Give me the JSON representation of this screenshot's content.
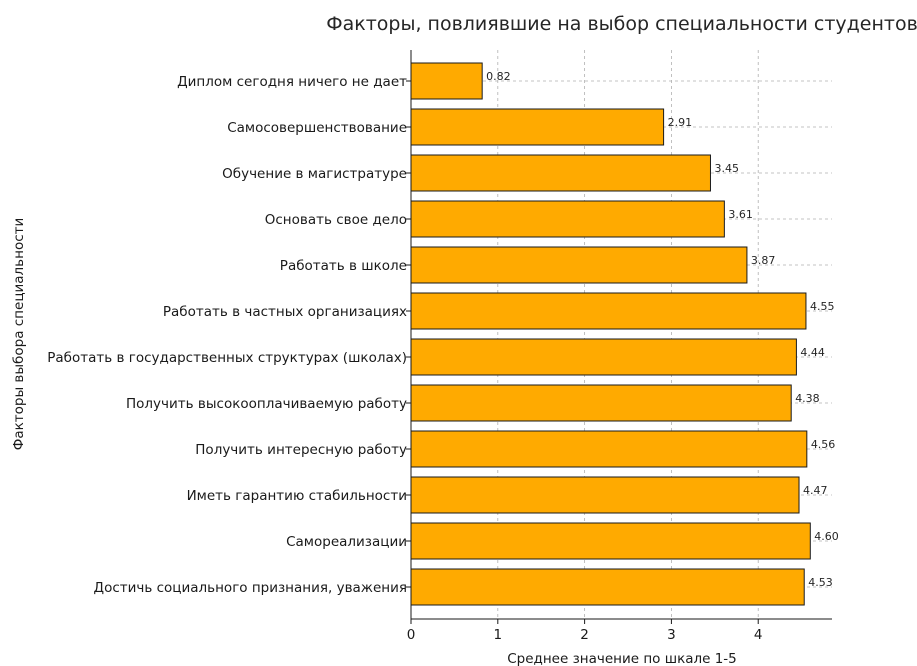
{
  "chart_data": {
    "type": "bar",
    "orientation": "horizontal",
    "title": "Факторы, повлиявшие на выбор специальности студентов",
    "xlabel": "Среднее значение по шкале 1-5",
    "ylabel": "Факторы выбора специальности",
    "xlim": [
      0,
      4.85
    ],
    "xticks": [
      "0",
      "1",
      "2",
      "3",
      "4"
    ],
    "grid": true,
    "bar_color": "#ffaa00",
    "categories": [
      "Диплом сегодня ничего не дает",
      "Самосовершенствование",
      "Обучение в магистратуре",
      "Основать свое дело",
      "Работать в школе",
      "Работать в частных организациях",
      "Работать в государственных структурах (школах)",
      "Получить высокооплачиваемую работу",
      "Получить интересную работу",
      "Иметь гарантию стабильности",
      "Самореализации",
      "Достичь социального признания, уважения"
    ],
    "values": [
      0.82,
      2.91,
      3.45,
      3.61,
      3.87,
      4.55,
      4.44,
      4.38,
      4.56,
      4.47,
      4.6,
      4.53
    ],
    "value_labels": [
      "0.82",
      "2.91",
      "3.45",
      "3.61",
      "3.87",
      "4.55",
      "4.44",
      "4.38",
      "4.56",
      "4.47",
      "4.60",
      "4.53"
    ]
  }
}
